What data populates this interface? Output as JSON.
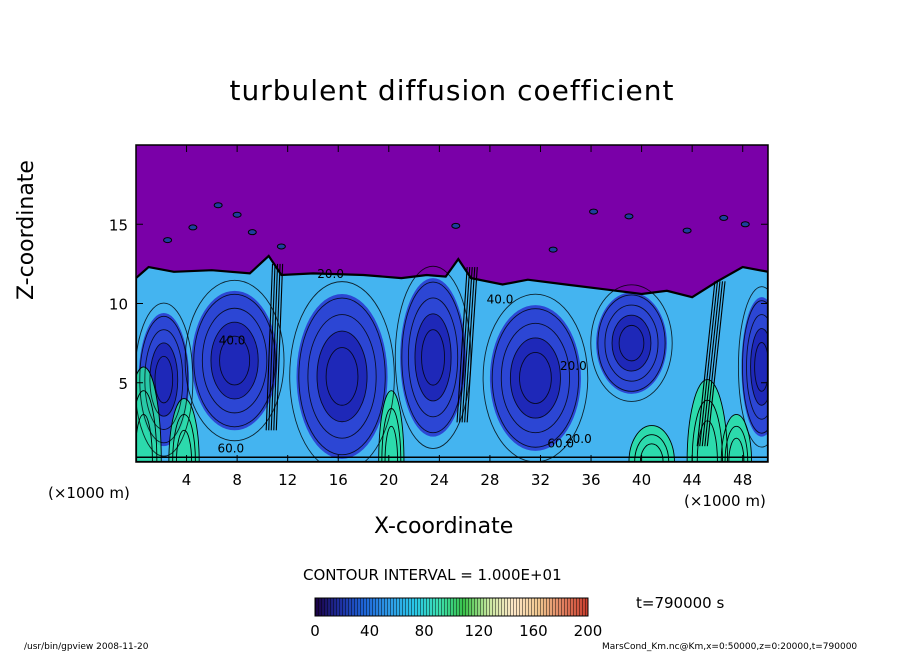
{
  "chart_data": {
    "type": "heatmap",
    "title": "turbulent diffusion coefficient",
    "xlabel": "X-coordinate",
    "ylabel": "Z-coordinate",
    "x_unit_label": "(×1000 m)",
    "y_unit_label": "(×1000 m)",
    "xlim": [
      0,
      50
    ],
    "ylim": [
      0,
      20
    ],
    "x_ticks": [
      4,
      8,
      12,
      16,
      20,
      24,
      28,
      32,
      36,
      40,
      44,
      48
    ],
    "y_ticks": [
      5,
      10,
      15
    ],
    "contour_interval_text": "CONTOUR INTERVAL = 1.000E+01",
    "colorbar": {
      "min": 0,
      "max": 200,
      "ticks": [
        0,
        40,
        80,
        120,
        160,
        200
      ],
      "colors": [
        "#1a0040",
        "#1e2fa0",
        "#1e66d8",
        "#2f9ce8",
        "#29c7e8",
        "#3ce0b0",
        "#3ac24a",
        "#c8e8a0",
        "#ffe8c8",
        "#f0c890",
        "#e08060",
        "#c83c2c"
      ]
    },
    "contour_labels": [
      {
        "text": "20.0",
        "x": 15.4,
        "z": 11.6
      },
      {
        "text": "40.0",
        "x": 28.8,
        "z": 10.0
      },
      {
        "text": "40.0",
        "x": 7.6,
        "z": 7.4
      },
      {
        "text": "20.0",
        "x": 34.6,
        "z": 5.8
      },
      {
        "text": "60.0",
        "x": 7.5,
        "z": 0.6
      },
      {
        "text": "60.0",
        "x": 33.6,
        "z": 0.9
      },
      {
        "text": "20.0",
        "x": 35.0,
        "z": 1.2
      }
    ],
    "time_label": "t=790000 s",
    "footer_left": "/usr/bin/gpview   2008-11-20",
    "footer_right": "MarsCond_Km.nc@Km,x=0:50000,z=0:20000,t=790000",
    "field_colors": {
      "upper_uniform": "#7a00a8",
      "low_values": "#2a3ad0",
      "mid_values": "#44b4f0",
      "high_values": "#28e0a0"
    }
  }
}
